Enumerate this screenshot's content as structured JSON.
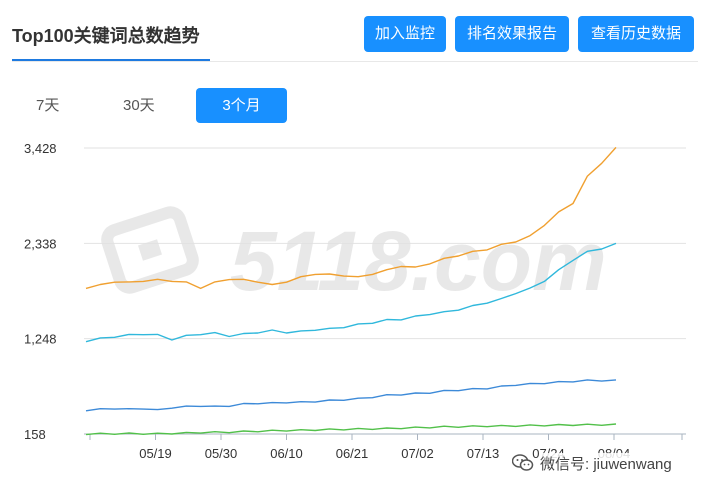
{
  "header": {
    "title": "Top100关键词总数趋势",
    "buttons": {
      "monitor": "加入监控",
      "report": "排名效果报告",
      "history": "查看历史数据"
    }
  },
  "tabs": {
    "d7": "7天",
    "d30": "30天",
    "m3": "3个月",
    "active": "3个月"
  },
  "watermark": {
    "text": "5118.com"
  },
  "wechat": {
    "text": "微信号: jiuwenwang"
  },
  "chart_data": {
    "type": "line",
    "y_ticks": [
      "3,428",
      "2,338",
      "1,248",
      "158"
    ],
    "ylim": [
      158,
      3428
    ],
    "x_labels": [
      "05/19",
      "05/30",
      "06/10",
      "06/21",
      "07/02",
      "07/13",
      "07/24",
      "08/04"
    ],
    "grid": true,
    "series": [
      {
        "color": "#f0a030",
        "values": [
          1830,
          1860,
          1900,
          1890,
          1910,
          1920,
          1910,
          1890,
          1830,
          1890,
          1930,
          1920,
          1900,
          1860,
          1900,
          1950,
          1990,
          1980,
          1970,
          1950,
          1990,
          2030,
          2080,
          2060,
          2110,
          2160,
          2200,
          2240,
          2270,
          2320,
          2360,
          2420,
          2550,
          2690,
          2800,
          3100,
          3260,
          3428
        ]
      },
      {
        "color": "#30b8dc",
        "values": [
          1220,
          1250,
          1270,
          1290,
          1300,
          1290,
          1240,
          1280,
          1300,
          1310,
          1280,
          1300,
          1320,
          1340,
          1320,
          1330,
          1350,
          1360,
          1380,
          1410,
          1430,
          1460,
          1470,
          1500,
          1530,
          1550,
          1580,
          1620,
          1660,
          1700,
          1770,
          1820,
          1910,
          2030,
          2150,
          2240,
          2280,
          2330
        ]
      },
      {
        "color": "#3d8ad8",
        "values": [
          430,
          440,
          450,
          440,
          450,
          430,
          460,
          470,
          480,
          470,
          480,
          500,
          510,
          510,
          520,
          520,
          530,
          540,
          550,
          560,
          580,
          600,
          610,
          620,
          630,
          650,
          660,
          670,
          680,
          700,
          720,
          730,
          740,
          750,
          760,
          770,
          770,
          770
        ]
      },
      {
        "color": "#52c04a",
        "values": [
          158,
          160,
          162,
          163,
          162,
          160,
          165,
          170,
          175,
          178,
          180,
          185,
          190,
          195,
          198,
          200,
          205,
          210,
          212,
          215,
          218,
          220,
          225,
          230,
          235,
          240,
          242,
          245,
          248,
          250,
          252,
          255,
          258,
          260,
          262,
          263,
          264,
          265
        ]
      }
    ]
  }
}
